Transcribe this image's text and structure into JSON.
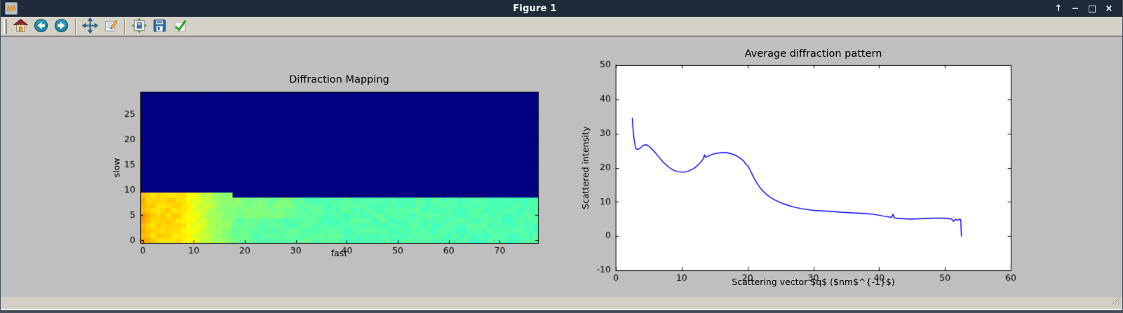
{
  "window": {
    "title": "Figure 1",
    "controls": {
      "shade_glyph": "↑",
      "minimize_glyph": "−",
      "maximize_glyph": "□",
      "close_glyph": "×"
    }
  },
  "toolbar": {
    "icons": [
      "drag-handle",
      "home-icon",
      "back-icon",
      "forward-icon",
      "pan-icon",
      "edit-notepad-icon",
      "configure-subplots-icon",
      "save-icon",
      "apply-check-icon"
    ]
  },
  "status_bar": {
    "message": ""
  },
  "colors": {
    "titlebar_bg": "#1d2b3a",
    "toolbar_bg": "#d5d1c7",
    "figure_bg": "#bfbfbf",
    "statusbar_bg": "#d3cfc5",
    "heatmap_background": "#000080",
    "line_color": "#0000ff",
    "axes_bg": "#ffffff",
    "text_color": "#000000"
  },
  "chart_data": [
    {
      "type": "heatmap",
      "title": "Diffraction Mapping",
      "xlabel": "fast",
      "ylabel": "slow",
      "xlim": [
        -0.5,
        77.5
      ],
      "ylim": [
        -0.5,
        29.5
      ],
      "xticks": [
        0,
        10,
        20,
        30,
        40,
        50,
        60,
        70
      ],
      "yticks": [
        0,
        5,
        10,
        15,
        20,
        25
      ],
      "colormap": "jet",
      "n_cols": 78,
      "n_rows": 30,
      "background_value": 0.0,
      "data_top_row_left": 9,
      "left_region_last_col": 17,
      "data_top_row_right": 8,
      "column_values": [
        0.695,
        0.672,
        0.668,
        0.666,
        0.664,
        0.663,
        0.661,
        0.656,
        0.641,
        0.626,
        0.609,
        0.591,
        0.573,
        0.556,
        0.54,
        0.528,
        0.518,
        0.508,
        0.478,
        0.472,
        0.47,
        0.469,
        0.468,
        0.468,
        0.467,
        0.467,
        0.466,
        0.466,
        0.464,
        0.463,
        0.462,
        0.462,
        0.461,
        0.461,
        0.46,
        0.46,
        0.459,
        0.459,
        0.459,
        0.458,
        0.458,
        0.458,
        0.457,
        0.457,
        0.457,
        0.456,
        0.456,
        0.456,
        0.456,
        0.455,
        0.455,
        0.455,
        0.455,
        0.455,
        0.454,
        0.454,
        0.454,
        0.454,
        0.454,
        0.454,
        0.453,
        0.453,
        0.453,
        0.453,
        0.453,
        0.453,
        0.453,
        0.452,
        0.452,
        0.452,
        0.452,
        0.452,
        0.452,
        0.452,
        0.452,
        0.452,
        0.452,
        0.452
      ],
      "hotspots": [
        [
          0,
          0,
          0.725
        ],
        [
          1,
          0,
          0.7
        ],
        [
          0,
          1,
          0.69
        ],
        [
          0,
          3,
          0.7
        ],
        [
          0,
          4,
          0.72
        ],
        [
          1,
          4,
          0.695
        ],
        [
          0,
          5,
          0.735
        ],
        [
          1,
          5,
          0.7
        ],
        [
          2,
          5,
          0.68
        ],
        [
          0,
          6,
          0.69
        ],
        [
          0,
          9,
          0.69
        ]
      ],
      "streaks": [
        {
          "c0": 18,
          "c1": 29,
          "r0": 5,
          "r1": 8,
          "add": 0.03
        }
      ]
    },
    {
      "type": "line",
      "title": "Average diffraction pattern",
      "xlabel": "Scattering vector $q$ ($nm$^{-1}$)",
      "ylabel": "Scattered intensity",
      "xlim": [
        0,
        60
      ],
      "ylim": [
        -10,
        50
      ],
      "xticks": [
        0,
        10,
        20,
        30,
        40,
        50,
        60
      ],
      "yticks": [
        -10,
        0,
        10,
        20,
        30,
        40,
        50
      ],
      "grid": false,
      "legend": false,
      "series": [
        {
          "name": "average diffraction pattern",
          "color": "#0000ff",
          "points": [
            [
              2.5,
              34.5
            ],
            [
              2.6,
              31.5
            ],
            [
              2.75,
              28.5
            ],
            [
              3.0,
              25.7
            ],
            [
              3.3,
              25.3
            ],
            [
              3.6,
              25.6
            ],
            [
              4.0,
              26.3
            ],
            [
              4.4,
              26.7
            ],
            [
              4.8,
              26.6
            ],
            [
              5.2,
              26.0
            ],
            [
              5.8,
              24.8
            ],
            [
              6.5,
              23.2
            ],
            [
              7.2,
              21.6
            ],
            [
              8.0,
              20.2
            ],
            [
              8.8,
              19.2
            ],
            [
              9.5,
              18.8
            ],
            [
              10.3,
              18.7
            ],
            [
              11.0,
              19.0
            ],
            [
              11.8,
              19.7
            ],
            [
              12.5,
              20.8
            ],
            [
              13.0,
              21.9
            ],
            [
              13.3,
              22.6
            ],
            [
              13.45,
              23.8
            ],
            [
              13.6,
              23.1
            ],
            [
              14.0,
              23.3
            ],
            [
              14.5,
              23.8
            ],
            [
              15.2,
              24.2
            ],
            [
              16.0,
              24.4
            ],
            [
              16.8,
              24.4
            ],
            [
              17.5,
              24.1
            ],
            [
              18.2,
              23.6
            ],
            [
              18.8,
              22.9
            ],
            [
              19.4,
              22.0
            ],
            [
              19.8,
              20.9
            ],
            [
              20.0,
              20.6
            ],
            [
              20.15,
              20.2
            ],
            [
              20.5,
              18.9
            ],
            [
              21.0,
              16.9
            ],
            [
              21.5,
              15.3
            ],
            [
              22.0,
              13.9
            ],
            [
              22.5,
              12.9
            ],
            [
              23.0,
              12.0
            ],
            [
              23.5,
              11.3
            ],
            [
              24.0,
              10.7
            ],
            [
              25.0,
              9.8
            ],
            [
              26.0,
              9.1
            ],
            [
              27.0,
              8.5
            ],
            [
              28.0,
              8.1
            ],
            [
              29.0,
              7.8
            ],
            [
              30.0,
              7.5
            ],
            [
              31.0,
              7.4
            ],
            [
              32.0,
              7.3
            ],
            [
              33.0,
              7.2
            ],
            [
              34.0,
              7.0
            ],
            [
              35.0,
              6.9
            ],
            [
              36.0,
              6.8
            ],
            [
              37.0,
              6.7
            ],
            [
              38.0,
              6.6
            ],
            [
              39.0,
              6.4
            ],
            [
              40.0,
              6.1
            ],
            [
              40.8,
              5.8
            ],
            [
              41.5,
              5.6
            ],
            [
              41.9,
              5.5
            ],
            [
              42.1,
              6.4
            ],
            [
              42.3,
              5.4
            ],
            [
              42.6,
              5.2
            ],
            [
              43.5,
              5.1
            ],
            [
              44.5,
              5.0
            ],
            [
              45.5,
              5.0
            ],
            [
              46.5,
              5.1
            ],
            [
              47.5,
              5.2
            ],
            [
              48.5,
              5.25
            ],
            [
              49.5,
              5.25
            ],
            [
              50.5,
              5.15
            ],
            [
              51.0,
              5.0
            ],
            [
              51.3,
              4.3
            ],
            [
              51.6,
              4.9
            ],
            [
              51.9,
              4.6
            ],
            [
              52.2,
              4.9
            ],
            [
              52.4,
              4.8
            ],
            [
              52.5,
              0.0
            ]
          ]
        }
      ]
    }
  ]
}
